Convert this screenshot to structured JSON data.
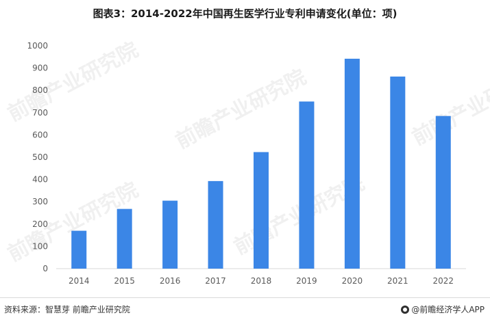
{
  "title": "图表3：2014-2022年中国再生医学行业专利申请变化(单位：项)",
  "footer": {
    "source": "资料来源：智慧芽 前瞻产业研究院",
    "brand": "@前瞻经济学人APP"
  },
  "watermark": {
    "text": "前瞻产业研究院"
  },
  "colors": {
    "bar": "#3b86e6",
    "axis": "#d9d9d9",
    "text": "#595959"
  },
  "chart_data": {
    "type": "bar",
    "title": "图表3：2014-2022年中国再生医学行业专利申请变化(单位：项)",
    "categories": [
      "2014",
      "2015",
      "2016",
      "2017",
      "2018",
      "2019",
      "2020",
      "2021",
      "2022"
    ],
    "values": [
      170,
      268,
      305,
      393,
      523,
      750,
      942,
      862,
      685
    ],
    "ylim": [
      0,
      1000
    ],
    "yticks": [
      0,
      100,
      200,
      300,
      400,
      500,
      600,
      700,
      800,
      900,
      1000
    ],
    "grid": false,
    "legend": "none"
  }
}
